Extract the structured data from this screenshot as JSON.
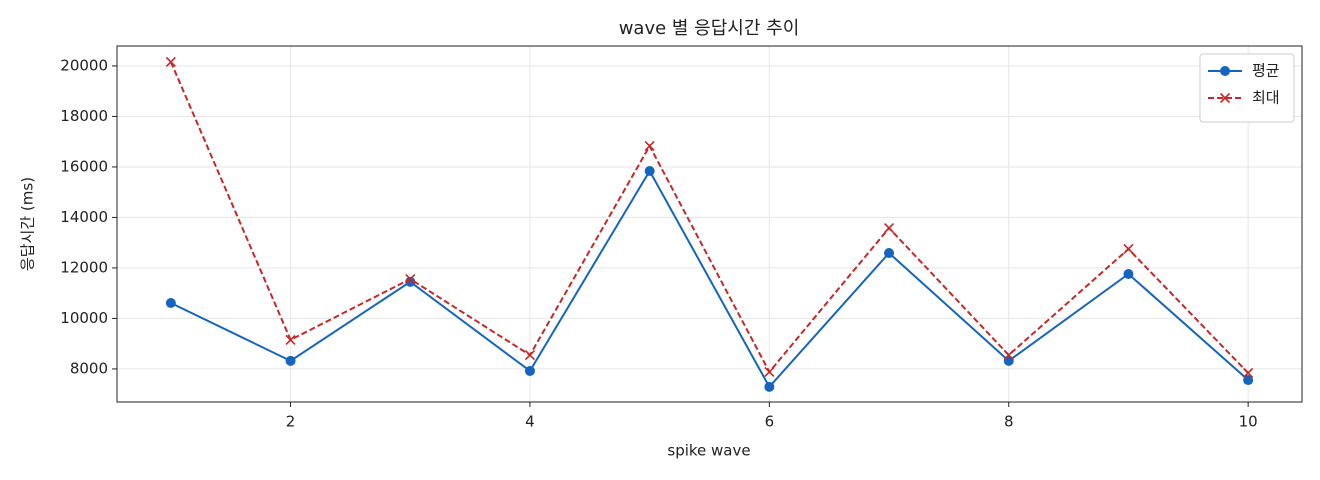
{
  "chart_data": {
    "type": "line",
    "title": "wave 별 응답시간 추이",
    "x_label": "spike wave",
    "y_label": "응답시간 (ms)",
    "x": [
      1,
      2,
      3,
      4,
      5,
      6,
      7,
      8,
      9,
      10
    ],
    "series": [
      {
        "name": "평균",
        "color": "#1565c0",
        "marker": "o",
        "dash": "solid",
        "values": [
          10610,
          8320,
          11450,
          7920,
          15840,
          7290,
          12590,
          8320,
          11760,
          7560
        ]
      },
      {
        "name": "최대",
        "color": "#c62828",
        "marker": "x",
        "dash": "dashed",
        "values": [
          20160,
          9150,
          11560,
          8550,
          16830,
          7880,
          13580,
          8550,
          12750,
          7840
        ]
      }
    ],
    "xlim": [
      0.55,
      10.45
    ],
    "ylim": [
      6690,
      20790
    ],
    "xticks": [
      2,
      4,
      6,
      8,
      10
    ],
    "yticks": [
      8000,
      10000,
      12000,
      14000,
      16000,
      18000,
      20000
    ],
    "grid": true,
    "legend": "upper right"
  }
}
